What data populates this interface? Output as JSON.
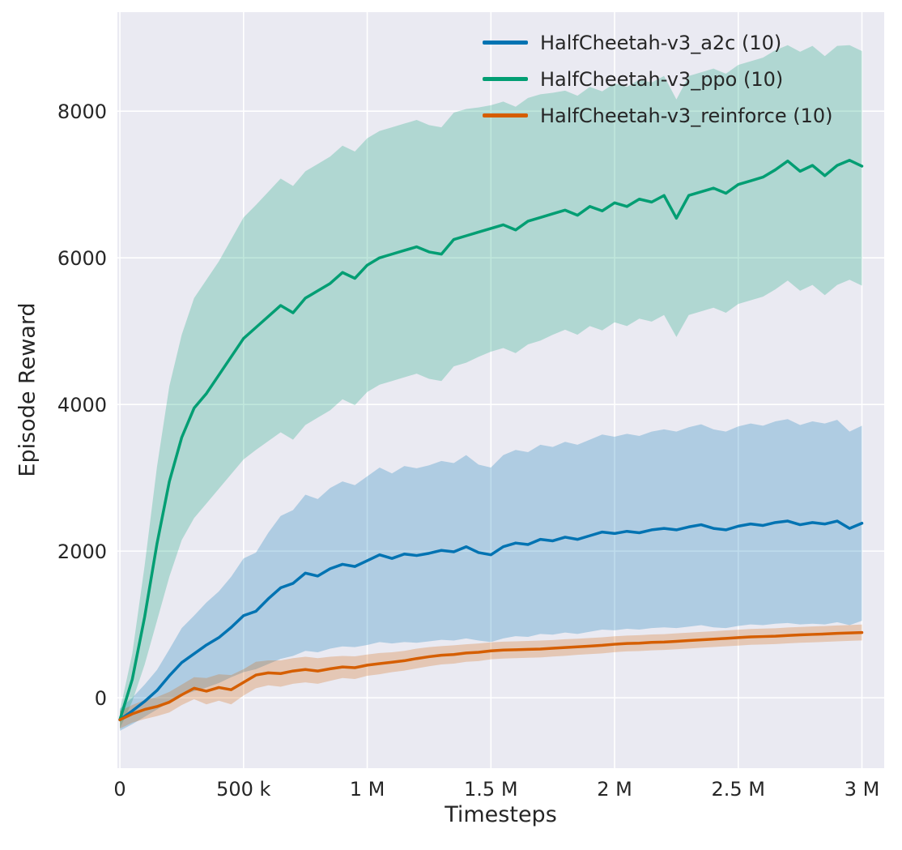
{
  "chart_data": {
    "type": "line",
    "title": "",
    "xlabel": "Timesteps",
    "ylabel": "Episode Reward",
    "x_unit": "millions of timesteps",
    "grid": true,
    "plot_bg": "#eaeaf2",
    "grid_color": "#ffffff",
    "text_color": "#262626",
    "band_opacity": 0.25,
    "legend_position": "upper center",
    "xlim": [
      -0.01,
      3.09
    ],
    "ylim": [
      -960,
      9350
    ],
    "x_ticks": {
      "values": [
        0,
        0.5,
        1,
        1.5,
        2,
        2.5,
        3
      ],
      "labels": [
        "0",
        "500 k",
        "1 M",
        "1.5 M",
        "2 M",
        "2.5 M",
        "3 M"
      ]
    },
    "y_ticks": {
      "values": [
        0,
        2000,
        4000,
        6000,
        8000
      ],
      "labels": [
        "0",
        "2000",
        "4000",
        "6000",
        "8000"
      ]
    },
    "x": [
      0,
      0.05,
      0.1,
      0.15,
      0.2,
      0.25,
      0.3,
      0.35,
      0.4,
      0.45,
      0.5,
      0.55,
      0.6,
      0.65,
      0.7,
      0.75,
      0.8,
      0.85,
      0.9,
      0.95,
      1,
      1.05,
      1.1,
      1.15,
      1.2,
      1.25,
      1.3,
      1.35,
      1.4,
      1.45,
      1.5,
      1.55,
      1.6,
      1.65,
      1.7,
      1.75,
      1.8,
      1.85,
      1.9,
      1.95,
      2,
      2.05,
      2.1,
      2.15,
      2.2,
      2.25,
      2.3,
      2.35,
      2.4,
      2.45,
      2.5,
      2.55,
      2.6,
      2.65,
      2.7,
      2.75,
      2.8,
      2.85,
      2.9,
      2.95,
      3
    ],
    "series": [
      {
        "name": "HalfCheetah-v3_a2c (10)",
        "color": "#0173b2",
        "mean": [
          -300,
          -180,
          -50,
          100,
          300,
          480,
          600,
          720,
          820,
          960,
          1120,
          1180,
          1350,
          1500,
          1560,
          1700,
          1660,
          1760,
          1820,
          1790,
          1870,
          1950,
          1900,
          1960,
          1940,
          1970,
          2010,
          1990,
          2060,
          1980,
          1950,
          2060,
          2110,
          2090,
          2160,
          2140,
          2190,
          2160,
          2210,
          2260,
          2240,
          2270,
          2250,
          2290,
          2310,
          2290,
          2330,
          2360,
          2310,
          2290,
          2340,
          2370,
          2350,
          2390,
          2410,
          2360,
          2390,
          2370,
          2410,
          2310,
          2380
        ],
        "lo": [
          -450,
          -360,
          -260,
          -160,
          -60,
          30,
          90,
          140,
          200,
          280,
          350,
          390,
          460,
          530,
          570,
          640,
          620,
          670,
          700,
          690,
          720,
          760,
          740,
          760,
          750,
          770,
          790,
          780,
          810,
          780,
          760,
          810,
          840,
          830,
          870,
          860,
          890,
          870,
          900,
          930,
          920,
          940,
          930,
          950,
          960,
          950,
          970,
          990,
          960,
          950,
          980,
          1000,
          990,
          1010,
          1020,
          1000,
          1010,
          1000,
          1030,
          990,
          1050
        ],
        "hi": [
          -150,
          0,
          180,
          380,
          660,
          950,
          1120,
          1300,
          1450,
          1650,
          1900,
          1980,
          2250,
          2480,
          2560,
          2770,
          2710,
          2860,
          2950,
          2900,
          3020,
          3140,
          3060,
          3160,
          3130,
          3170,
          3230,
          3200,
          3310,
          3180,
          3140,
          3310,
          3380,
          3350,
          3450,
          3420,
          3490,
          3450,
          3520,
          3590,
          3560,
          3600,
          3570,
          3630,
          3660,
          3630,
          3690,
          3730,
          3660,
          3630,
          3700,
          3740,
          3710,
          3770,
          3800,
          3720,
          3770,
          3740,
          3790,
          3630,
          3710
        ]
      },
      {
        "name": "HalfCheetah-v3_ppo (10)",
        "color": "#029e73",
        "mean": [
          -300,
          250,
          1100,
          2100,
          2950,
          3550,
          3950,
          4150,
          4400,
          4650,
          4900,
          5050,
          5200,
          5350,
          5250,
          5450,
          5550,
          5650,
          5800,
          5720,
          5900,
          6000,
          6050,
          6100,
          6150,
          6080,
          6050,
          6250,
          6300,
          6350,
          6400,
          6450,
          6380,
          6500,
          6550,
          6600,
          6650,
          6580,
          6700,
          6640,
          6750,
          6700,
          6800,
          6760,
          6850,
          6540,
          6850,
          6900,
          6950,
          6880,
          7000,
          7050,
          7100,
          7200,
          7320,
          7180,
          7260,
          7120,
          7260,
          7330,
          7250
        ],
        "lo": [
          -420,
          -50,
          450,
          1050,
          1650,
          2150,
          2450,
          2650,
          2850,
          3050,
          3250,
          3380,
          3500,
          3620,
          3520,
          3720,
          3820,
          3920,
          4070,
          3990,
          4170,
          4270,
          4320,
          4370,
          4420,
          4350,
          4320,
          4520,
          4570,
          4650,
          4720,
          4770,
          4700,
          4820,
          4870,
          4950,
          5020,
          4950,
          5070,
          5010,
          5120,
          5070,
          5170,
          5130,
          5220,
          4920,
          5220,
          5270,
          5320,
          5250,
          5370,
          5420,
          5470,
          5570,
          5690,
          5550,
          5630,
          5490,
          5630,
          5700,
          5620
        ],
        "hi": [
          -180,
          600,
          1800,
          3150,
          4250,
          4950,
          5450,
          5700,
          5950,
          6250,
          6550,
          6720,
          6900,
          7080,
          6980,
          7180,
          7280,
          7380,
          7530,
          7450,
          7630,
          7730,
          7780,
          7830,
          7880,
          7810,
          7780,
          7980,
          8030,
          8050,
          8080,
          8130,
          8060,
          8180,
          8230,
          8250,
          8280,
          8210,
          8330,
          8270,
          8380,
          8330,
          8430,
          8390,
          8480,
          8160,
          8480,
          8530,
          8580,
          8510,
          8630,
          8680,
          8730,
          8830,
          8900,
          8810,
          8890,
          8750,
          8890,
          8900,
          8820
        ]
      },
      {
        "name": "HalfCheetah-v3_reinforce (10)",
        "color": "#d55e00",
        "mean": [
          -300,
          -220,
          -160,
          -120,
          -60,
          40,
          130,
          90,
          140,
          110,
          210,
          310,
          340,
          330,
          365,
          385,
          365,
          395,
          420,
          410,
          445,
          465,
          485,
          505,
          535,
          560,
          580,
          590,
          610,
          620,
          640,
          650,
          655,
          660,
          665,
          675,
          685,
          695,
          705,
          715,
          730,
          740,
          745,
          755,
          760,
          770,
          780,
          790,
          800,
          810,
          820,
          830,
          835,
          840,
          850,
          858,
          864,
          870,
          878,
          884,
          890
        ],
        "lo": [
          -420,
          -340,
          -290,
          -250,
          -200,
          -100,
          -20,
          -90,
          -40,
          -90,
          30,
          130,
          170,
          150,
          190,
          210,
          190,
          230,
          270,
          255,
          300,
          320,
          350,
          370,
          400,
          430,
          455,
          465,
          490,
          500,
          525,
          535,
          540,
          545,
          550,
          562,
          572,
          585,
          595,
          605,
          622,
          632,
          637,
          647,
          652,
          662,
          672,
          682,
          692,
          702,
          712,
          722,
          727,
          732,
          742,
          750,
          756,
          762,
          770,
          776,
          782
        ],
        "hi": [
          -180,
          -100,
          -30,
          10,
          80,
          180,
          280,
          270,
          320,
          310,
          390,
          490,
          510,
          510,
          540,
          560,
          540,
          560,
          570,
          565,
          590,
          610,
          620,
          640,
          670,
          690,
          705,
          715,
          730,
          740,
          755,
          765,
          770,
          775,
          780,
          788,
          798,
          805,
          815,
          825,
          838,
          848,
          853,
          863,
          868,
          878,
          888,
          898,
          908,
          918,
          928,
          938,
          943,
          948,
          958,
          966,
          972,
          978,
          986,
          992,
          998
        ]
      }
    ]
  }
}
